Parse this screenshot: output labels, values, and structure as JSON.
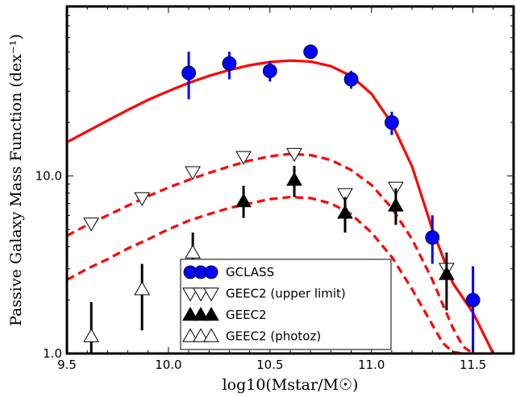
{
  "chart_data": {
    "type": "scatter",
    "xlabel": "log10(Mstar/M☉)",
    "ylabel": "Passive Galaxy Mass Function (dex⁻¹)",
    "xlim": [
      9.5,
      11.7
    ],
    "ylim": [
      1.0,
      90.0
    ],
    "yscale": "log",
    "x_ticks": [
      "9.5",
      "10.0",
      "10.5",
      "11.0",
      "11.5"
    ],
    "y_ticks": [
      "1.0",
      "10.0"
    ],
    "legend_position": "bottom-center",
    "series": [
      {
        "name": "GCLASS",
        "marker": "filled-circle",
        "color": "#0000ff",
        "points": [
          {
            "x": 10.1,
            "y": 38,
            "ylo": 27,
            "yhi": 50
          },
          {
            "x": 10.3,
            "y": 43,
            "ylo": 35,
            "yhi": 50
          },
          {
            "x": 10.5,
            "y": 39,
            "ylo": 34,
            "yhi": 44
          },
          {
            "x": 10.7,
            "y": 50,
            "ylo": 46,
            "yhi": 54
          },
          {
            "x": 10.9,
            "y": 35,
            "ylo": 31,
            "yhi": 39
          },
          {
            "x": 11.1,
            "y": 20,
            "ylo": 17,
            "yhi": 23
          },
          {
            "x": 11.3,
            "y": 4.5,
            "ylo": 3.2,
            "yhi": 6.0
          },
          {
            "x": 11.5,
            "y": 2.0,
            "ylo": 1.0,
            "yhi": 3.1
          }
        ]
      },
      {
        "name": "GEEC2 (upper limit)",
        "marker": "open-triangle-down",
        "color": "#000000",
        "points": [
          {
            "x": 9.62,
            "y": 5.4
          },
          {
            "x": 9.87,
            "y": 7.5
          },
          {
            "x": 10.12,
            "y": 10.5
          },
          {
            "x": 10.37,
            "y": 12.8
          },
          {
            "x": 10.62,
            "y": 13.3
          },
          {
            "x": 10.87,
            "y": 7.9
          },
          {
            "x": 11.12,
            "y": 8.6
          },
          {
            "x": 11.37,
            "y": 3.0
          }
        ]
      },
      {
        "name": "GEEC2",
        "marker": "filled-triangle-up",
        "color": "#000000",
        "points": [
          {
            "x": 10.37,
            "y": 7.2,
            "ylo": 5.8,
            "yhi": 8.8
          },
          {
            "x": 10.62,
            "y": 9.5,
            "ylo": 7.6,
            "yhi": 11.4
          },
          {
            "x": 10.87,
            "y": 6.2,
            "ylo": 4.8,
            "yhi": 7.6
          },
          {
            "x": 11.12,
            "y": 6.8,
            "ylo": 5.3,
            "yhi": 8.5
          },
          {
            "x": 11.37,
            "y": 2.8,
            "ylo": 1.75,
            "yhi": 3.7
          }
        ]
      },
      {
        "name": "GEEC2 (photoz)",
        "marker": "open-triangle-up",
        "color": "#000000",
        "points": [
          {
            "x": 9.62,
            "y": 1.25,
            "ylo": 1.0,
            "yhi": 1.95
          },
          {
            "x": 9.87,
            "y": 2.3,
            "ylo": 1.35,
            "yhi": 3.2
          },
          {
            "x": 10.12,
            "y": 3.7,
            "ylo": 3.0,
            "yhi": 4.8
          }
        ]
      }
    ],
    "curves": [
      {
        "style": "solid",
        "color": "#ff0000",
        "x": [
          9.5,
          9.6,
          9.7,
          9.8,
          9.9,
          10.0,
          10.1,
          10.2,
          10.3,
          10.4,
          10.5,
          10.6,
          10.7,
          10.8,
          10.9,
          11.0,
          11.1,
          11.2,
          11.3,
          11.4,
          11.5,
          11.6
        ],
        "y": [
          15.5,
          17.8,
          20.5,
          23.5,
          26.8,
          30.0,
          33.4,
          36.6,
          39.5,
          42.0,
          43.8,
          44.6,
          44.0,
          41.5,
          36.5,
          29.0,
          19.8,
          11.3,
          5.0,
          2.5,
          1.7,
          1.0
        ]
      },
      {
        "style": "dashed",
        "color": "#ff0000",
        "x": [
          9.5,
          9.6,
          9.7,
          9.8,
          9.9,
          10.0,
          10.1,
          10.2,
          10.3,
          10.4,
          10.5,
          10.6,
          10.7,
          10.8,
          10.9,
          11.0,
          11.1,
          11.2,
          11.3,
          11.35,
          11.4,
          11.45,
          11.5
        ],
        "y": [
          4.6,
          5.3,
          6.0,
          6.8,
          7.7,
          8.6,
          9.5,
          10.4,
          11.3,
          12.2,
          12.9,
          13.3,
          13.1,
          12.3,
          10.8,
          8.9,
          6.6,
          4.4,
          2.6,
          1.9,
          1.4,
          1.1,
          1.0
        ]
      },
      {
        "style": "dashed",
        "color": "#ff0000",
        "x": [
          9.5,
          9.6,
          9.7,
          9.8,
          9.9,
          10.0,
          10.1,
          10.2,
          10.3,
          10.4,
          10.5,
          10.6,
          10.7,
          10.8,
          10.9,
          11.0,
          11.1,
          11.2,
          11.3,
          11.35,
          11.4,
          11.45
        ],
        "y": [
          2.6,
          3.0,
          3.4,
          3.9,
          4.4,
          5.0,
          5.6,
          6.1,
          6.6,
          7.0,
          7.4,
          7.6,
          7.5,
          7.0,
          6.1,
          4.8,
          3.5,
          2.3,
          1.45,
          1.15,
          1.02,
          1.0
        ]
      }
    ]
  }
}
